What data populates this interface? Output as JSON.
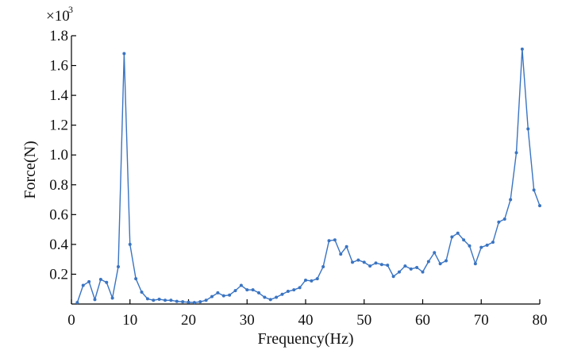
{
  "chart_data": {
    "type": "line",
    "title": "",
    "xlabel": "Frequency(Hz)",
    "ylabel": "Force(N)",
    "y_multiplier_base": "×10",
    "y_multiplier_exp": "3",
    "xlim": [
      0,
      80
    ],
    "ylim": [
      0,
      1.8
    ],
    "xticks": [
      0,
      10,
      20,
      30,
      40,
      50,
      60,
      70,
      80
    ],
    "xtick_labels": [
      "0",
      "10",
      "20",
      "30",
      "40",
      "50",
      "60",
      "70",
      "80"
    ],
    "yticks": [
      0.2,
      0.4,
      0.6,
      0.8,
      1.0,
      1.2,
      1.4,
      1.6,
      1.8
    ],
    "ytick_labels": [
      "0.2",
      "0.4",
      "0.6",
      "0.8",
      "1.0",
      "1.2",
      "1.4",
      "1.6",
      "1.8"
    ],
    "grid": false,
    "color": "#3a74c2",
    "x": [
      1,
      2,
      3,
      4,
      5,
      6,
      7,
      8,
      9,
      10,
      11,
      12,
      13,
      14,
      15,
      16,
      17,
      18,
      19,
      20,
      21,
      22,
      23,
      24,
      25,
      26,
      27,
      28,
      29,
      30,
      31,
      32,
      33,
      34,
      35,
      36,
      37,
      38,
      39,
      40,
      41,
      42,
      43,
      44,
      45,
      46,
      47,
      48,
      49,
      50,
      51,
      52,
      53,
      54,
      55,
      56,
      57,
      58,
      59,
      60,
      61,
      62,
      63,
      64,
      65,
      66,
      67,
      68,
      69,
      70,
      71,
      72,
      73,
      74,
      75,
      76,
      77,
      78,
      79,
      80
    ],
    "y": [
      0.01,
      0.125,
      0.15,
      0.03,
      0.165,
      0.145,
      0.04,
      0.25,
      1.68,
      0.4,
      0.17,
      0.08,
      0.035,
      0.025,
      0.032,
      0.025,
      0.025,
      0.018,
      0.015,
      0.012,
      0.01,
      0.015,
      0.025,
      0.05,
      0.075,
      0.055,
      0.06,
      0.09,
      0.125,
      0.095,
      0.095,
      0.075,
      0.045,
      0.03,
      0.045,
      0.065,
      0.085,
      0.095,
      0.11,
      0.16,
      0.155,
      0.17,
      0.25,
      0.425,
      0.43,
      0.335,
      0.385,
      0.28,
      0.295,
      0.28,
      0.255,
      0.275,
      0.265,
      0.26,
      0.185,
      0.215,
      0.255,
      0.235,
      0.245,
      0.215,
      0.285,
      0.345,
      0.27,
      0.29,
      0.45,
      0.475,
      0.43,
      0.39,
      0.27,
      0.38,
      0.395,
      0.415,
      0.55,
      0.57,
      0.7,
      1.015,
      1.71,
      1.175,
      0.765,
      0.66
    ]
  }
}
